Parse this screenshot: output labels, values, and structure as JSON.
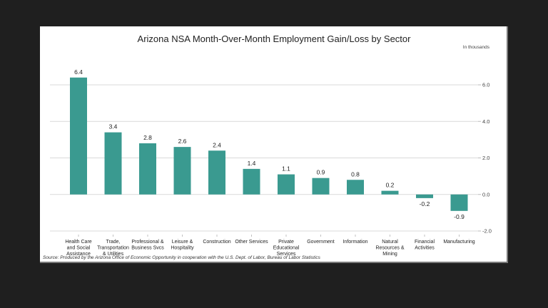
{
  "chart_data": {
    "type": "bar",
    "title": "Arizona NSA Month-Over-Month Employment Gain/Loss by Sector",
    "units_note": "In thousands",
    "xlabel": "",
    "ylabel": "",
    "ylim": [
      -2.0,
      6.0
    ],
    "yticks": [
      6.0,
      4.0,
      2.0,
      0.0,
      -2.0
    ],
    "ytick_labels": [
      "6.0",
      "4.0",
      "2.0",
      "0.0",
      "-2.0"
    ],
    "y_axis_side": "right",
    "grid": true,
    "legend": "none",
    "bar_color": "#3a9a90",
    "categories": [
      [
        "Health Care",
        "and Social",
        "Assistance"
      ],
      [
        "Trade,",
        "Transportation",
        "& Utilities"
      ],
      [
        "Professional &",
        "Business Svcs"
      ],
      [
        "Leisure &",
        "Hospitality"
      ],
      [
        "Construction"
      ],
      [
        "Other Services"
      ],
      [
        "Private",
        "Educational",
        "Services"
      ],
      [
        "Government"
      ],
      [
        "Information"
      ],
      [
        "Natural",
        "Resources &",
        "Mining"
      ],
      [
        "Financial",
        "Activities"
      ],
      [
        "Manufacturing"
      ]
    ],
    "values": [
      6.4,
      3.4,
      2.8,
      2.6,
      2.4,
      1.4,
      1.1,
      0.9,
      0.8,
      0.2,
      -0.2,
      -0.9
    ],
    "data_labels": [
      "6.4",
      "3.4",
      "2.8",
      "2.6",
      "2.4",
      "1.4",
      "1.1",
      "0.9",
      "0.8",
      "0.2",
      "-0.2",
      "-0.9"
    ],
    "source": "Source: Produced by the Arizona Office of Economic Opportunity in cooperation with the U.S. Dept. of Labor, Bureau of Labor Statistics"
  }
}
